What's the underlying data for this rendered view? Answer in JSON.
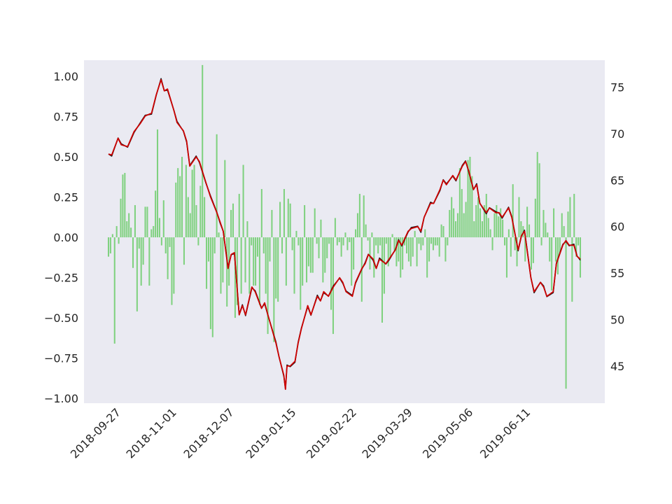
{
  "chart_data": {
    "type": "bar+line",
    "title": "",
    "xlabel": "",
    "ylabel": "",
    "grid": false,
    "legend": "none",
    "x_start": "2018-09-19",
    "x_end": "2019-07-12",
    "x_ticks": [
      "2018-09-27",
      "2018-11-01",
      "2018-12-07",
      "2019-01-15",
      "2019-02-22",
      "2019-03-29",
      "2019-05-06",
      "2019-06-11"
    ],
    "y_left_lim": [
      -1.03,
      1.1
    ],
    "y_left_ticks": [
      "1.00",
      "0.75",
      "0.50",
      "0.25",
      "0.00",
      "−0.25",
      "−0.50",
      "−0.75",
      "−1.00"
    ],
    "y_right_lim": [
      41.0,
      77.9
    ],
    "y_right_ticks": [
      "75",
      "70",
      "65",
      "60",
      "55",
      "50",
      "45"
    ],
    "colors": {
      "plot_background": "#eaeaf2",
      "bars": "#7fd17f",
      "line_black": "#111111",
      "line_red": "#cc0000"
    },
    "line_keypoints": [
      [
        "2018-09-19",
        67.8
      ],
      [
        "2018-09-21",
        67.7
      ],
      [
        "2018-09-25",
        69.5
      ],
      [
        "2018-09-27",
        68.8
      ],
      [
        "2018-10-01",
        68.6
      ],
      [
        "2018-10-05",
        70.2
      ],
      [
        "2018-10-09",
        71.1
      ],
      [
        "2018-10-12",
        71.9
      ],
      [
        "2018-10-16",
        72.2
      ],
      [
        "2018-10-19",
        74.2
      ],
      [
        "2018-10-22",
        75.8
      ],
      [
        "2018-10-24",
        74.6
      ],
      [
        "2018-10-26",
        74.8
      ],
      [
        "2018-10-30",
        72.5
      ],
      [
        "2018-11-01",
        71.2
      ],
      [
        "2018-11-05",
        70.3
      ],
      [
        "2018-11-07",
        69.2
      ],
      [
        "2018-11-09",
        66.5
      ],
      [
        "2018-11-13",
        67.5
      ],
      [
        "2018-11-15",
        67.0
      ],
      [
        "2018-11-19",
        64.8
      ],
      [
        "2018-11-22",
        63.2
      ],
      [
        "2018-11-26",
        61.5
      ],
      [
        "2018-11-28",
        60.5
      ],
      [
        "2018-11-30",
        59.5
      ],
      [
        "2018-12-03",
        55.5
      ],
      [
        "2018-12-05",
        57.0
      ],
      [
        "2018-12-07",
        57.2
      ],
      [
        "2018-12-10",
        50.5
      ],
      [
        "2018-12-12",
        51.5
      ],
      [
        "2018-12-14",
        50.5
      ],
      [
        "2018-12-18",
        53.5
      ],
      [
        "2018-12-20",
        53.0
      ],
      [
        "2018-12-24",
        51.2
      ],
      [
        "2018-12-26",
        51.8
      ],
      [
        "2018-12-28",
        50.5
      ],
      [
        "2019-01-02",
        47.5
      ],
      [
        "2019-01-04",
        46.0
      ],
      [
        "2019-01-07",
        44.0
      ],
      [
        "2019-01-08",
        42.5
      ],
      [
        "2019-01-09",
        45.0
      ],
      [
        "2019-01-11",
        45.0
      ],
      [
        "2019-01-14",
        45.5
      ],
      [
        "2019-01-16",
        47.5
      ],
      [
        "2019-01-18",
        49.0
      ],
      [
        "2019-01-22",
        51.5
      ],
      [
        "2019-01-24",
        50.5
      ],
      [
        "2019-01-28",
        52.5
      ],
      [
        "2019-01-30",
        52.0
      ],
      [
        "2019-02-01",
        53.0
      ],
      [
        "2019-02-04",
        52.5
      ],
      [
        "2019-02-07",
        53.5
      ],
      [
        "2019-02-11",
        54.5
      ],
      [
        "2019-02-13",
        54.0
      ],
      [
        "2019-02-15",
        53.0
      ],
      [
        "2019-02-19",
        52.5
      ],
      [
        "2019-02-21",
        54.0
      ],
      [
        "2019-02-25",
        55.5
      ],
      [
        "2019-02-27",
        56.0
      ],
      [
        "2019-03-01",
        57.0
      ],
      [
        "2019-03-04",
        56.5
      ],
      [
        "2019-03-06",
        55.5
      ],
      [
        "2019-03-08",
        56.5
      ],
      [
        "2019-03-12",
        56.0
      ],
      [
        "2019-03-14",
        56.5
      ],
      [
        "2019-03-18",
        57.5
      ],
      [
        "2019-03-20",
        58.5
      ],
      [
        "2019-03-22",
        58.0
      ],
      [
        "2019-03-26",
        59.5
      ],
      [
        "2019-03-28",
        59.8
      ],
      [
        "2019-04-01",
        60.0
      ],
      [
        "2019-04-03",
        59.5
      ],
      [
        "2019-04-05",
        61.0
      ],
      [
        "2019-04-09",
        62.5
      ],
      [
        "2019-04-11",
        62.5
      ],
      [
        "2019-04-15",
        64.0
      ],
      [
        "2019-04-17",
        65.0
      ],
      [
        "2019-04-19",
        64.5
      ],
      [
        "2019-04-23",
        65.5
      ],
      [
        "2019-04-25",
        65.0
      ],
      [
        "2019-04-29",
        66.5
      ],
      [
        "2019-05-01",
        67.0
      ],
      [
        "2019-05-03",
        66.0
      ],
      [
        "2019-05-06",
        64.0
      ],
      [
        "2019-05-08",
        64.5
      ],
      [
        "2019-05-10",
        62.5
      ],
      [
        "2019-05-14",
        61.5
      ],
      [
        "2019-05-16",
        62.0
      ],
      [
        "2019-05-20",
        61.5
      ],
      [
        "2019-05-22",
        61.5
      ],
      [
        "2019-05-24",
        61.0
      ],
      [
        "2019-05-28",
        62.0
      ],
      [
        "2019-05-30",
        61.0
      ],
      [
        "2019-06-03",
        57.5
      ],
      [
        "2019-06-05",
        59.0
      ],
      [
        "2019-06-07",
        59.5
      ],
      [
        "2019-06-11",
        54.5
      ],
      [
        "2019-06-13",
        53.0
      ],
      [
        "2019-06-17",
        54.0
      ],
      [
        "2019-06-19",
        53.5
      ],
      [
        "2019-06-21",
        52.5
      ],
      [
        "2019-06-25",
        53.0
      ],
      [
        "2019-06-27",
        56.0
      ],
      [
        "2019-07-01",
        58.0
      ],
      [
        "2019-07-03",
        58.5
      ],
      [
        "2019-07-05",
        58.0
      ],
      [
        "2019-07-08",
        58.0
      ],
      [
        "2019-07-10",
        56.8
      ],
      [
        "2019-07-12",
        56.5
      ]
    ],
    "bar_values": [
      -0.12,
      -0.1,
      0.02,
      -0.66,
      0.07,
      -0.04,
      0.24,
      0.39,
      0.4,
      0.1,
      0.15,
      0.06,
      -0.19,
      0.2,
      -0.46,
      -0.07,
      -0.3,
      -0.17,
      0.19,
      0.19,
      -0.3,
      0.05,
      0.07,
      0.29,
      0.67,
      0.12,
      -0.05,
      0.23,
      -0.1,
      -0.26,
      -0.06,
      -0.42,
      -0.35,
      0.34,
      0.43,
      0.38,
      0.5,
      -0.17,
      0.45,
      0.25,
      0.15,
      0.42,
      0.45,
      0.2,
      -0.05,
      0.32,
      1.07,
      0.25,
      -0.32,
      -0.15,
      -0.57,
      -0.62,
      -0.1,
      0.64,
      0.03,
      -0.35,
      -0.28,
      0.48,
      -0.43,
      -0.3,
      0.17,
      0.21,
      -0.5,
      -0.42,
      0.27,
      -0.35,
      0.45,
      -0.28,
      0.1,
      -0.35,
      -0.05,
      -0.3,
      -0.3,
      -0.12,
      -0.42,
      0.3,
      -0.1,
      -0.35,
      -0.6,
      -0.15,
      0.17,
      -0.65,
      -0.38,
      -0.4,
      0.22,
      -0.1,
      0.3,
      -0.3,
      0.24,
      0.21,
      -0.08,
      -0.35,
      0.04,
      -0.05,
      -0.45,
      -0.3,
      0.2,
      -0.28,
      -0.18,
      -0.22,
      -0.22,
      0.18,
      -0.04,
      -0.13,
      0.11,
      -0.28,
      -0.22,
      -0.13,
      -0.04,
      -0.45,
      -0.6,
      0.12,
      -0.05,
      -0.03,
      -0.12,
      -0.05,
      0.03,
      -0.08,
      -0.03,
      -0.3,
      -0.2,
      0.05,
      0.15,
      0.27,
      -0.4,
      0.26,
      0.08,
      -0.02,
      -0.2,
      0.03,
      -0.25,
      -0.05,
      -0.1,
      -0.05,
      -0.53,
      -0.35,
      -0.04,
      -0.18,
      -0.13,
      0.02,
      -0.08,
      -0.18,
      -0.15,
      -0.25,
      -0.2,
      -0.05,
      -0.1,
      -0.15,
      -0.18,
      -0.12,
      0.04,
      -0.18,
      -0.04,
      -0.08,
      -0.05,
      0.05,
      -0.25,
      -0.15,
      -0.04,
      -0.08,
      -0.05,
      -0.05,
      -0.12,
      0.08,
      0.07,
      -0.15,
      -0.05,
      0.17,
      0.25,
      0.18,
      0.1,
      0.15,
      0.43,
      0.3,
      0.15,
      0.22,
      0.48,
      0.5,
      0.38,
      0.1,
      0.2,
      0.25,
      0.18,
      0.1,
      0.2,
      0.27,
      0.12,
      0.05,
      -0.08,
      0.15,
      0.2,
      0.13,
      0.18,
      0.11,
      -0.05,
      -0.25,
      0.05,
      -0.12,
      0.33,
      -0.08,
      -0.18,
      0.25,
      0.1,
      0.07,
      -0.15,
      0.19,
      0.08,
      -0.2,
      -0.16,
      0.24,
      0.53,
      0.46,
      -0.05,
      0.17,
      0.09,
      0.03,
      -0.15,
      -0.33,
      0.18,
      -0.15,
      -0.23,
      -0.1,
      0.15,
      0.07,
      -0.94,
      0.16,
      0.25,
      -0.4,
      0.27,
      -0.12,
      -0.05,
      -0.25
    ]
  }
}
